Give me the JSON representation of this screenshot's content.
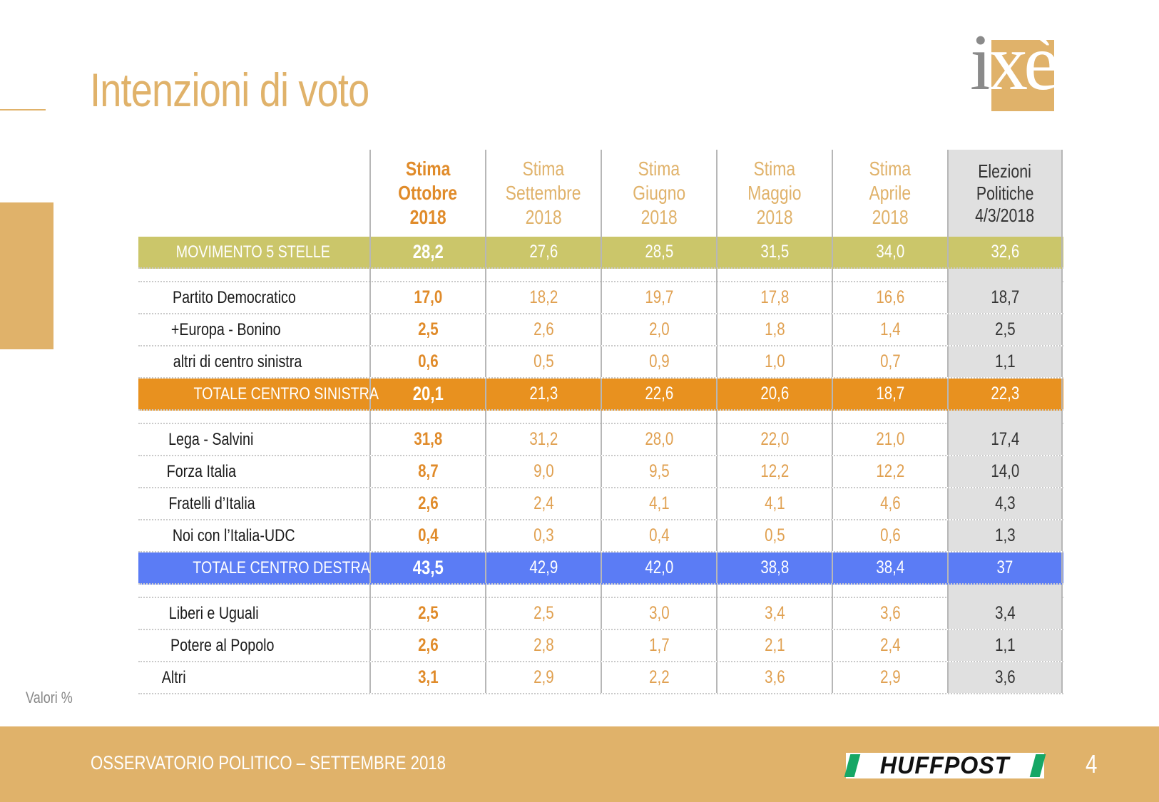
{
  "title": "Intenzioni di voto",
  "logo": {
    "text_i": "i",
    "text_x": "x",
    "text_e": "è",
    "color": "#E0B26A"
  },
  "columns": [
    {
      "lines": [
        "Stima",
        "Ottobre",
        "2018"
      ]
    },
    {
      "lines": [
        "Stima",
        "Settembre",
        "2018"
      ]
    },
    {
      "lines": [
        "Stima",
        "Giugno",
        "2018"
      ]
    },
    {
      "lines": [
        "Stima",
        "Maggio",
        "2018"
      ]
    },
    {
      "lines": [
        "Stima",
        "Aprile",
        "2018"
      ]
    },
    {
      "lines": [
        "Elezioni",
        "Politiche",
        "4/3/2018"
      ]
    }
  ],
  "rows": [
    {
      "label": "MOVIMENTO 5 STELLE",
      "values": [
        "28,2",
        "27,6",
        "28,5",
        "31,5",
        "34,0",
        "32,6"
      ],
      "highlight": "#CBC66A"
    },
    {
      "label": "Partito Democratico",
      "values": [
        "17,0",
        "18,2",
        "19,7",
        "17,8",
        "16,6",
        "18,7"
      ]
    },
    {
      "label": "+Europa - Bonino",
      "values": [
        "2,5",
        "2,6",
        "2,0",
        "1,8",
        "1,4",
        "2,5"
      ]
    },
    {
      "label": "altri di centro sinistra",
      "values": [
        "0,6",
        "0,5",
        "0,9",
        "1,0",
        "0,7",
        "1,1"
      ]
    },
    {
      "label": "TOTALE CENTRO SINISTRA",
      "values": [
        "20,1",
        "21,3",
        "22,6",
        "20,6",
        "18,7",
        "22,3"
      ],
      "highlight": "#E8911F"
    },
    {
      "label": "Lega - Salvini",
      "values": [
        "31,8",
        "31,2",
        "28,0",
        "22,0",
        "21,0",
        "17,4"
      ]
    },
    {
      "label": "Forza Italia",
      "values": [
        "8,7",
        "9,0",
        "9,5",
        "12,2",
        "12,2",
        "14,0"
      ]
    },
    {
      "label": "Fratelli d’Italia",
      "values": [
        "2,6",
        "2,4",
        "4,1",
        "4,1",
        "4,6",
        "4,3"
      ]
    },
    {
      "label": "Noi con l’Italia-UDC",
      "values": [
        "0,4",
        "0,3",
        "0,4",
        "0,5",
        "0,6",
        "1,3"
      ]
    },
    {
      "label": "TOTALE CENTRO DESTRA",
      "values": [
        "43,5",
        "42,9",
        "42,0",
        "38,8",
        "38,4",
        "37"
      ],
      "highlight": "#5B7CF5"
    },
    {
      "label": "Liberi e Uguali",
      "values": [
        "2,5",
        "2,5",
        "3,0",
        "3,4",
        "3,6",
        "3,4"
      ]
    },
    {
      "label": "Potere al Popolo",
      "values": [
        "2,6",
        "2,8",
        "1,7",
        "2,1",
        "2,4",
        "1,1"
      ]
    },
    {
      "label": "Altri",
      "values": [
        "3,1",
        "2,9",
        "2,2",
        "3,6",
        "2,9",
        "3,6"
      ]
    }
  ],
  "note": "Valori %",
  "footer": {
    "text": "OSSERVATORIO POLITICO – SETTEMBRE 2018",
    "brand": "HUFFPOST",
    "page_number": "4"
  }
}
